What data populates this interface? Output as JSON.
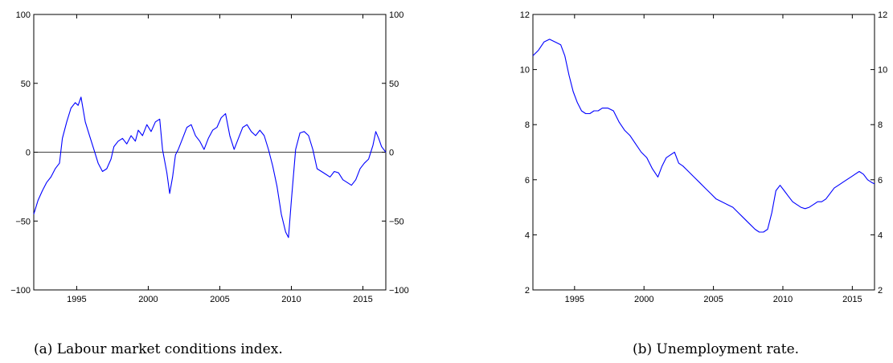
{
  "captions": [
    "(a) Labour market conditions index.",
    "(b) Unemployment rate."
  ],
  "colors": {
    "series": "#0000ff",
    "axis": "#000000",
    "zero_line": "#000000"
  },
  "chart_data": [
    {
      "type": "line",
      "title": "",
      "xlabel": "",
      "ylabel": "",
      "xlim": [
        1992.0,
        2016.6
      ],
      "ylim": [
        -100,
        100
      ],
      "x_ticks": [
        1995,
        2000,
        2005,
        2010,
        2015
      ],
      "y_ticks": [
        -100,
        -50,
        0,
        50,
        100
      ],
      "y_ticks_right": true,
      "reference_line": 0,
      "grid": false,
      "series": [
        {
          "x": [
            1992.0,
            1992.3,
            1992.6,
            1992.9,
            1993.2,
            1993.5,
            1993.8,
            1994.0,
            1994.3,
            1994.6,
            1994.9,
            1995.1,
            1995.3,
            1995.6,
            1995.9,
            1996.2,
            1996.5,
            1996.8,
            1997.1,
            1997.4,
            1997.6,
            1997.9,
            1998.2,
            1998.5,
            1998.8,
            1999.1,
            1999.3,
            1999.6,
            1999.9,
            2000.2,
            2000.5,
            2000.8,
            2001.0,
            2001.3,
            2001.5,
            2001.7,
            2001.9,
            2002.1,
            2002.4,
            2002.7,
            2003.0,
            2003.3,
            2003.6,
            2003.9,
            2004.2,
            2004.5,
            2004.8,
            2005.1,
            2005.4,
            2005.7,
            2006.0,
            2006.3,
            2006.6,
            2006.9,
            2007.2,
            2007.5,
            2007.8,
            2008.1,
            2008.4,
            2008.7,
            2009.0,
            2009.3,
            2009.6,
            2009.8,
            2010.0,
            2010.3,
            2010.6,
            2010.9,
            2011.2,
            2011.5,
            2011.8,
            2012.1,
            2012.4,
            2012.7,
            2013.0,
            2013.3,
            2013.6,
            2013.9,
            2014.2,
            2014.5,
            2014.8,
            2015.1,
            2015.4,
            2015.7,
            2015.9,
            2016.1,
            2016.3,
            2016.6
          ],
          "y": [
            -45,
            -35,
            -28,
            -22,
            -18,
            -12,
            -8,
            10,
            22,
            32,
            36,
            34,
            40,
            22,
            12,
            2,
            -8,
            -14,
            -12,
            -5,
            4,
            8,
            10,
            6,
            12,
            8,
            16,
            12,
            20,
            15,
            22,
            24,
            2,
            -15,
            -30,
            -18,
            -2,
            2,
            10,
            18,
            20,
            12,
            8,
            2,
            10,
            16,
            18,
            25,
            28,
            12,
            2,
            10,
            18,
            20,
            15,
            12,
            16,
            12,
            2,
            -10,
            -25,
            -45,
            -58,
            -62,
            -35,
            2,
            14,
            15,
            12,
            2,
            -12,
            -14,
            -16,
            -18,
            -14,
            -15,
            -20,
            -22,
            -24,
            -20,
            -12,
            -8,
            -5,
            5,
            15,
            10,
            4,
            0
          ]
        }
      ]
    },
    {
      "type": "line",
      "title": "",
      "xlabel": "",
      "ylabel": "",
      "xlim": [
        1992.0,
        2016.6
      ],
      "ylim": [
        2,
        12
      ],
      "x_ticks": [
        1995,
        2000,
        2005,
        2010,
        2015
      ],
      "y_ticks": [
        2,
        4,
        6,
        8,
        10,
        12
      ],
      "y_ticks_right": true,
      "grid": false,
      "series": [
        {
          "x": [
            1992.0,
            1992.4,
            1992.8,
            1993.2,
            1993.6,
            1994.0,
            1994.3,
            1994.6,
            1994.9,
            1995.2,
            1995.5,
            1995.8,
            1996.1,
            1996.4,
            1996.7,
            1997.0,
            1997.4,
            1997.8,
            1998.2,
            1998.6,
            1999.0,
            1999.4,
            1999.8,
            2000.2,
            2000.6,
            2001.0,
            2001.3,
            2001.6,
            2001.9,
            2002.2,
            2002.5,
            2002.8,
            2003.2,
            2003.6,
            2004.0,
            2004.4,
            2004.8,
            2005.2,
            2005.6,
            2006.0,
            2006.4,
            2006.8,
            2007.2,
            2007.6,
            2008.0,
            2008.3,
            2008.6,
            2008.9,
            2009.2,
            2009.5,
            2009.8,
            2010.1,
            2010.4,
            2010.7,
            2011.0,
            2011.3,
            2011.6,
            2011.9,
            2012.2,
            2012.5,
            2012.8,
            2013.1,
            2013.4,
            2013.7,
            2014.0,
            2014.3,
            2014.6,
            2014.9,
            2015.2,
            2015.5,
            2015.8,
            2016.1,
            2016.4,
            2016.6
          ],
          "y": [
            10.5,
            10.7,
            11.0,
            11.1,
            11.0,
            10.9,
            10.5,
            9.8,
            9.2,
            8.8,
            8.5,
            8.4,
            8.4,
            8.5,
            8.5,
            8.6,
            8.6,
            8.5,
            8.1,
            7.8,
            7.6,
            7.3,
            7.0,
            6.8,
            6.4,
            6.1,
            6.5,
            6.8,
            6.9,
            7.0,
            6.6,
            6.5,
            6.3,
            6.1,
            5.9,
            5.7,
            5.5,
            5.3,
            5.2,
            5.1,
            5.0,
            4.8,
            4.6,
            4.4,
            4.2,
            4.1,
            4.1,
            4.2,
            4.8,
            5.6,
            5.8,
            5.6,
            5.4,
            5.2,
            5.1,
            5.0,
            4.95,
            5.0,
            5.1,
            5.2,
            5.2,
            5.3,
            5.5,
            5.7,
            5.8,
            5.9,
            6.0,
            6.1,
            6.2,
            6.3,
            6.2,
            6.0,
            5.9,
            5.85
          ]
        }
      ]
    }
  ]
}
